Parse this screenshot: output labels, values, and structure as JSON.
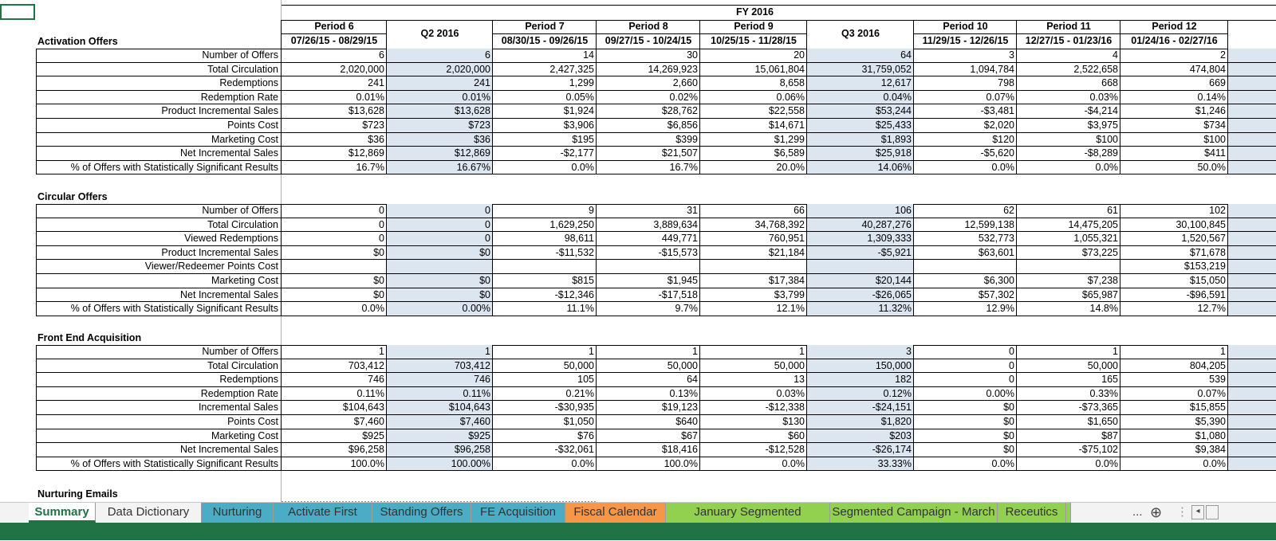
{
  "header": {
    "fy": "FY 2016",
    "columns": [
      {
        "period": "Period 6",
        "dates": "07/26/15 - 08/29/15",
        "quarter": false
      },
      {
        "period": "Q2 2016",
        "dates": "",
        "quarter": true
      },
      {
        "period": "Period 7",
        "dates": "08/30/15 - 09/26/15",
        "quarter": false
      },
      {
        "period": "Period 8",
        "dates": "09/27/15 - 10/24/15",
        "quarter": false
      },
      {
        "period": "Period 9",
        "dates": "10/25/15 - 11/28/15",
        "quarter": false
      },
      {
        "period": "Q3 2016",
        "dates": "",
        "quarter": true
      },
      {
        "period": "Period 10",
        "dates": "11/29/15 - 12/26/15",
        "quarter": false
      },
      {
        "period": "Period 11",
        "dates": "12/27/15 - 01/23/16",
        "quarter": false
      },
      {
        "period": "Period 12",
        "dates": "01/24/16 - 02/27/16",
        "quarter": false
      }
    ]
  },
  "sections": [
    {
      "title": "Activation Offers",
      "rows": [
        {
          "label": "Number of Offers",
          "values": [
            "6",
            "6",
            "14",
            "30",
            "20",
            "64",
            "3",
            "4",
            "2"
          ]
        },
        {
          "label": "Total Circulation",
          "values": [
            "2,020,000",
            "2,020,000",
            "2,427,325",
            "14,269,923",
            "15,061,804",
            "31,759,052",
            "1,094,784",
            "2,522,658",
            "474,804"
          ]
        },
        {
          "label": "Redemptions",
          "values": [
            "241",
            "241",
            "1,299",
            "2,660",
            "8,658",
            "12,617",
            "798",
            "668",
            "669"
          ]
        },
        {
          "label": "Redemption Rate",
          "values": [
            "0.01%",
            "0.01%",
            "0.05%",
            "0.02%",
            "0.06%",
            "0.04%",
            "0.07%",
            "0.03%",
            "0.14%"
          ]
        },
        {
          "label": "Product Incremental Sales",
          "values": [
            "$13,628",
            "$13,628",
            "$1,924",
            "$28,762",
            "$22,558",
            "$53,244",
            "-$3,481",
            "-$4,214",
            "$1,246"
          ]
        },
        {
          "label": "Points Cost",
          "values": [
            "$723",
            "$723",
            "$3,906",
            "$6,856",
            "$14,671",
            "$25,433",
            "$2,020",
            "$3,975",
            "$734"
          ]
        },
        {
          "label": "Marketing Cost",
          "values": [
            "$36",
            "$36",
            "$195",
            "$399",
            "$1,299",
            "$1,893",
            "$120",
            "$100",
            "$100"
          ]
        },
        {
          "label": "Net Incremental Sales",
          "values": [
            "$12,869",
            "$12,869",
            "-$2,177",
            "$21,507",
            "$6,589",
            "$25,918",
            "-$5,620",
            "-$8,289",
            "$411"
          ]
        },
        {
          "label": "% of Offers with Statistically Significant Results",
          "values": [
            "16.7%",
            "16.67%",
            "0.0%",
            "16.7%",
            "20.0%",
            "14.06%",
            "0.0%",
            "0.0%",
            "50.0%"
          ]
        }
      ]
    },
    {
      "title": "Circular Offers",
      "rows": [
        {
          "label": "Number of Offers",
          "values": [
            "0",
            "0",
            "9",
            "31",
            "66",
            "106",
            "62",
            "61",
            "102"
          ]
        },
        {
          "label": "Total Circulation",
          "values": [
            "0",
            "0",
            "1,629,250",
            "3,889,634",
            "34,768,392",
            "40,287,276",
            "12,599,138",
            "14,475,205",
            "30,100,845"
          ]
        },
        {
          "label": "Viewed Redemptions",
          "values": [
            "0",
            "0",
            "98,611",
            "449,771",
            "760,951",
            "1,309,333",
            "532,773",
            "1,055,321",
            "1,520,567"
          ]
        },
        {
          "label": "Product Incremental Sales",
          "values": [
            "$0",
            "$0",
            "-$11,532",
            "-$15,573",
            "$21,184",
            "-$5,921",
            "$63,601",
            "$73,225",
            "$71,678"
          ]
        },
        {
          "label": "Viewer/Redeemer Points Cost",
          "values": [
            "",
            "",
            "",
            "",
            "",
            "",
            "",
            "",
            "$153,219"
          ]
        },
        {
          "label": "Marketing Cost",
          "values": [
            "$0",
            "$0",
            "$815",
            "$1,945",
            "$17,384",
            "$20,144",
            "$6,300",
            "$7,238",
            "$15,050"
          ]
        },
        {
          "label": "Net Incremental Sales",
          "values": [
            "$0",
            "$0",
            "-$12,346",
            "-$17,518",
            "$3,799",
            "-$26,065",
            "$57,302",
            "$65,987",
            "-$96,591"
          ]
        },
        {
          "label": "% of Offers with Statistically Significant Results",
          "values": [
            "0.0%",
            "0.00%",
            "11.1%",
            "9.7%",
            "12.1%",
            "11.32%",
            "12.9%",
            "14.8%",
            "12.7%"
          ]
        }
      ]
    },
    {
      "title": "Front End Acquisition",
      "rows": [
        {
          "label": "Number of Offers",
          "values": [
            "1",
            "1",
            "1",
            "1",
            "1",
            "3",
            "0",
            "1",
            "1"
          ]
        },
        {
          "label": "Total Circulation",
          "values": [
            "703,412",
            "703,412",
            "50,000",
            "50,000",
            "50,000",
            "150,000",
            "0",
            "50,000",
            "804,205"
          ]
        },
        {
          "label": "Redemptions",
          "values": [
            "746",
            "746",
            "105",
            "64",
            "13",
            "182",
            "0",
            "165",
            "539"
          ]
        },
        {
          "label": "Redemption Rate",
          "values": [
            "0.11%",
            "0.11%",
            "0.21%",
            "0.13%",
            "0.03%",
            "0.12%",
            "0.00%",
            "0.33%",
            "0.07%"
          ]
        },
        {
          "label": "Incremental Sales",
          "values": [
            "$104,643",
            "$104,643",
            "-$30,935",
            "$19,123",
            "-$12,338",
            "-$24,151",
            "$0",
            "-$73,365",
            "$15,855"
          ]
        },
        {
          "label": "Points Cost",
          "values": [
            "$7,460",
            "$7,460",
            "$1,050",
            "$640",
            "$130",
            "$1,820",
            "$0",
            "$1,650",
            "$5,390"
          ]
        },
        {
          "label": "Marketing Cost",
          "values": [
            "$925",
            "$925",
            "$76",
            "$67",
            "$60",
            "$203",
            "$0",
            "$87",
            "$1,080"
          ]
        },
        {
          "label": "Net Incremental Sales",
          "values": [
            "$96,258",
            "$96,258",
            "-$32,061",
            "$18,416",
            "-$12,528",
            "-$26,174",
            "$0",
            "-$75,102",
            "$9,384"
          ]
        },
        {
          "label": "% of Offers with Statistically Significant Results",
          "values": [
            "100.0%",
            "100.00%",
            "0.0%",
            "100.0%",
            "0.0%",
            "33.33%",
            "0.0%",
            "0.0%",
            "0.0%"
          ]
        }
      ]
    },
    {
      "title": "Nurturing Emails",
      "rows": []
    }
  ],
  "tabs": [
    {
      "label": "Summary",
      "color": "#ffffff",
      "active": true
    },
    {
      "label": "Data Dictionary",
      "color": "#f3f3f3",
      "active": false
    },
    {
      "label": "Nurturing",
      "color": "#4bacc6",
      "active": false
    },
    {
      "label": "Activate First",
      "color": "#4bacc6",
      "active": false
    },
    {
      "label": "Standing Offers",
      "color": "#4bacc6",
      "active": false
    },
    {
      "label": "FE Acquisition",
      "color": "#4bacc6",
      "active": false
    },
    {
      "label": "Fiscal Calendar",
      "color": "#f79646",
      "active": false
    },
    {
      "label": "January Segmented Campaign",
      "color": "#92d050",
      "active": false
    },
    {
      "label": "Segmented Campaign - March",
      "color": "#92d050",
      "active": false
    },
    {
      "label": "Receutics",
      "color": "#92d050",
      "active": false
    }
  ],
  "tab_controls": {
    "more": "...",
    "add": "⊕"
  },
  "colors": {
    "quarter_fill": "#dce6f1",
    "excel_green": "#217346"
  }
}
